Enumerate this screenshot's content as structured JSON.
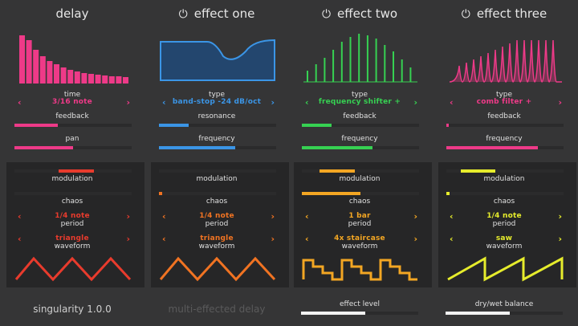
{
  "columns": [
    {
      "title": "delay",
      "power": false,
      "accent": "#ee3a88",
      "type_label": "time",
      "type_value": "3/16 note",
      "slider1_label": "feedback",
      "slider1_level": 0.37,
      "slider2_label": "pan",
      "slider2_level": 0.5,
      "modulation_label": "modulation",
      "modulation_level": 0.38,
      "chaos_label": "chaos",
      "chaos_level": 0.0,
      "period_value": "1/4 note",
      "period_label": "period",
      "waveform_value": "triangle",
      "waveform_label": "waveform",
      "mod_color": "#e83b2d",
      "bottom_text": "singularity 1.0.0"
    },
    {
      "title": "effect one",
      "power": true,
      "accent": "#3b95e6",
      "type_label": "type",
      "type_value": "band-stop -24 dB/oct",
      "slider1_label": "resonance",
      "slider1_level": 0.25,
      "slider2_label": "frequency",
      "slider2_level": 0.65,
      "modulation_label": "modulation",
      "modulation_level": 0.0,
      "chaos_label": "chaos",
      "chaos_level": 0.03,
      "period_value": "1/4 note",
      "period_label": "period",
      "waveform_value": "triangle",
      "waveform_label": "waveform",
      "mod_color": "#f07322",
      "bottom_text": "multi-effected delay"
    },
    {
      "title": "effect two",
      "power": true,
      "accent": "#36d152",
      "type_label": "type",
      "type_value": "frequency shifter +",
      "slider1_label": "feedback",
      "slider1_level": 0.25,
      "slider2_label": "frequency",
      "slider2_level": 0.6,
      "modulation_label": "modulation",
      "modulation_level": 0.15,
      "chaos_label": "chaos",
      "chaos_level": 0.5,
      "period_value": "1 bar",
      "period_label": "period",
      "waveform_value": "4x staircase",
      "waveform_label": "waveform",
      "mod_color": "#f3a623",
      "bottom_text": "effect level",
      "bottom_level": 0.55
    },
    {
      "title": "effect three",
      "power": true,
      "accent": "#ee3a88",
      "type_label": "type",
      "type_value": "comb filter +",
      "slider1_label": "feedback",
      "slider1_level": 0.02,
      "slider2_label": "frequency",
      "slider2_level": 0.78,
      "modulation_label": "modulation",
      "modulation_level": 0.12,
      "chaos_label": "chaos",
      "chaos_level": 0.03,
      "period_value": "1/4 note",
      "period_label": "period",
      "waveform_value": "saw",
      "waveform_label": "waveform",
      "mod_color": "#e6ec2c",
      "bottom_text": "dry/wet balance",
      "bottom_level": 0.55
    }
  ],
  "icons": {
    "power": "power-icon",
    "left_arrow": "chevron-left-icon",
    "right_arrow": "chevron-right-icon"
  }
}
